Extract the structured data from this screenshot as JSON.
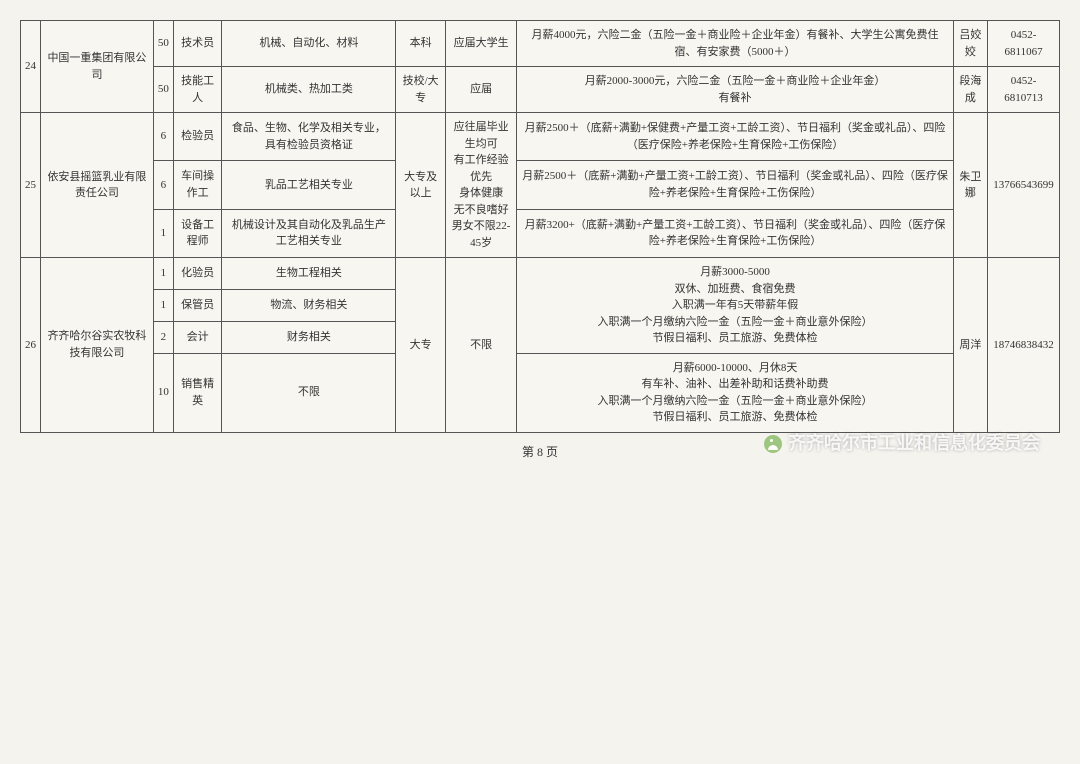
{
  "footer": "第 8 页",
  "watermark": "齐齐哈尔市工业和信息化委员会",
  "r": [
    {
      "n": "24",
      "c": "中国一重集团有限公司",
      "q": "50",
      "p": "技术员",
      "m": "机械、自动化、材料",
      "e": "本科",
      "rq": "应届大学生",
      "b": "月薪4000元，六险二金（五险一金＋商业险＋企业年金）有餐补、大学生公寓免费住宿、有安家费（5000＋）",
      "ct": "吕姣姣",
      "tel": "0452-6811067"
    },
    {
      "q": "50",
      "p": "技能工人",
      "m": "机械类、热加工类",
      "e": "技校/大专",
      "rq": "应届",
      "b": "月薪2000-3000元，六险二金（五险一金＋商业险＋企业年金）\n有餐补",
      "ct": "段海成",
      "tel": "0452-6810713"
    },
    {
      "n": "25",
      "c": "依安县摇篮乳业有限责任公司",
      "q": "6",
      "p": "检验员",
      "m": "食品、生物、化学及相关专业，具有检验员资格证",
      "e": "大专及以上",
      "rq": "应往届毕业生均可\n有工作经验优先\n身体健康\n无不良嗜好\n男女不限22-45岁",
      "b": "月薪2500＋（底薪+满勤+保健费+产量工资+工龄工资）、节日福利（奖金或礼品）、四险（医疗保险+养老保险+生育保险+工伤保险）",
      "ct": "朱卫娜",
      "tel": "13766543699"
    },
    {
      "q": "6",
      "p": "车间操作工",
      "m": "乳品工艺相关专业",
      "b": "月薪2500＋（底薪+满勤+产量工资+工龄工资）、节日福利（奖金或礼品）、四险（医疗保险+养老保险+生育保险+工伤保险）"
    },
    {
      "q": "1",
      "p": "设备工程师",
      "m": "机械设计及其自动化及乳品生产工艺相关专业",
      "b": "月薪3200+（底薪+满勤+产量工资+工龄工资）、节日福利（奖金或礼品）、四险（医疗保险+养老保险+生育保险+工伤保险）"
    },
    {
      "n": "26",
      "c": "齐齐哈尔谷实农牧科技有限公司",
      "q": "1",
      "p": "化验员",
      "m": "生物工程相关",
      "e": "大专",
      "rq": "不限",
      "b": "月薪3000-5000\n双休、加班费、食宿免费\n入职满一年有5天带薪年假\n入职满一个月缴纳六险一金（五险一金＋商业意外保险）\n节假日福利、员工旅游、免费体检",
      "ct": "周洋",
      "tel": "18746838432"
    },
    {
      "q": "1",
      "p": "保管员",
      "m": "物流、财务相关"
    },
    {
      "q": "2",
      "p": "会计",
      "m": "财务相关"
    },
    {
      "q": "10",
      "p": "销售精英",
      "m": "不限",
      "b": "月薪6000-10000、月休8天\n有车补、油补、出差补助和话费补助费\n入职满一个月缴纳六险一金（五险一金＋商业意外保险）\n节假日福利、员工旅游、免费体检"
    }
  ]
}
